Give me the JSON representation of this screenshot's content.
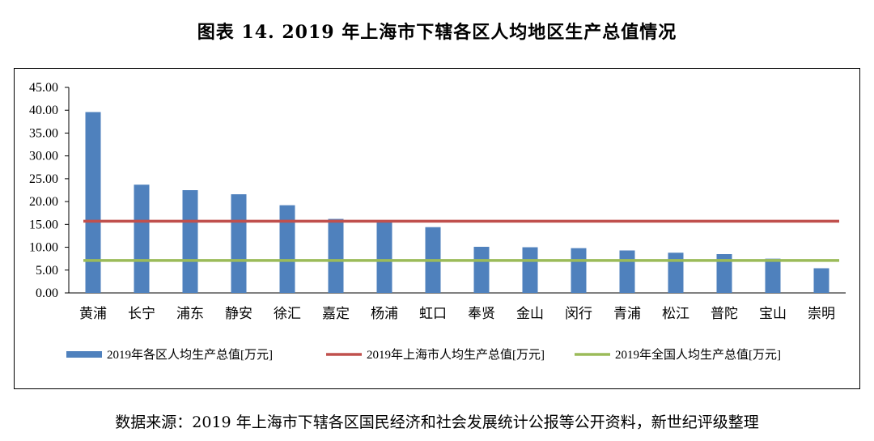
{
  "title": "图表 14. 2019 年上海市下辖各区人均地区生产总值情况",
  "source": "数据来源：2019 年上海市下辖各区国民经济和社会发展统计公报等公开资料，新世纪评级整理",
  "colors": {
    "bar": "#4f81bd",
    "city_line": "#c0504d",
    "national_line": "#9bbb59"
  },
  "chart_data": {
    "type": "bar",
    "categories": [
      "黄浦",
      "长宁",
      "浦东",
      "静安",
      "徐汇",
      "嘉定",
      "杨浦",
      "虹口",
      "奉贤",
      "金山",
      "闵行",
      "青浦",
      "松江",
      "普陀",
      "宝山",
      "崇明"
    ],
    "series": [
      {
        "name": "2019年各区人均生产总值[万元]",
        "type": "bar",
        "values": [
          39.6,
          23.7,
          22.5,
          21.6,
          19.2,
          16.2,
          15.5,
          14.4,
          10.1,
          10.0,
          9.8,
          9.3,
          8.8,
          8.5,
          7.5,
          5.4
        ]
      },
      {
        "name": "2019年上海市人均生产总值[万元]",
        "type": "line",
        "value": 15.7
      },
      {
        "name": "2019年全国人均生产总值[万元]",
        "type": "line",
        "value": 7.1
      }
    ],
    "yticks": [
      "0.00",
      "5.00",
      "10.00",
      "15.00",
      "20.00",
      "25.00",
      "30.00",
      "35.00",
      "40.00",
      "45.00"
    ],
    "ylim": [
      0,
      45
    ],
    "grid": false,
    "legend_position": "bottom"
  }
}
